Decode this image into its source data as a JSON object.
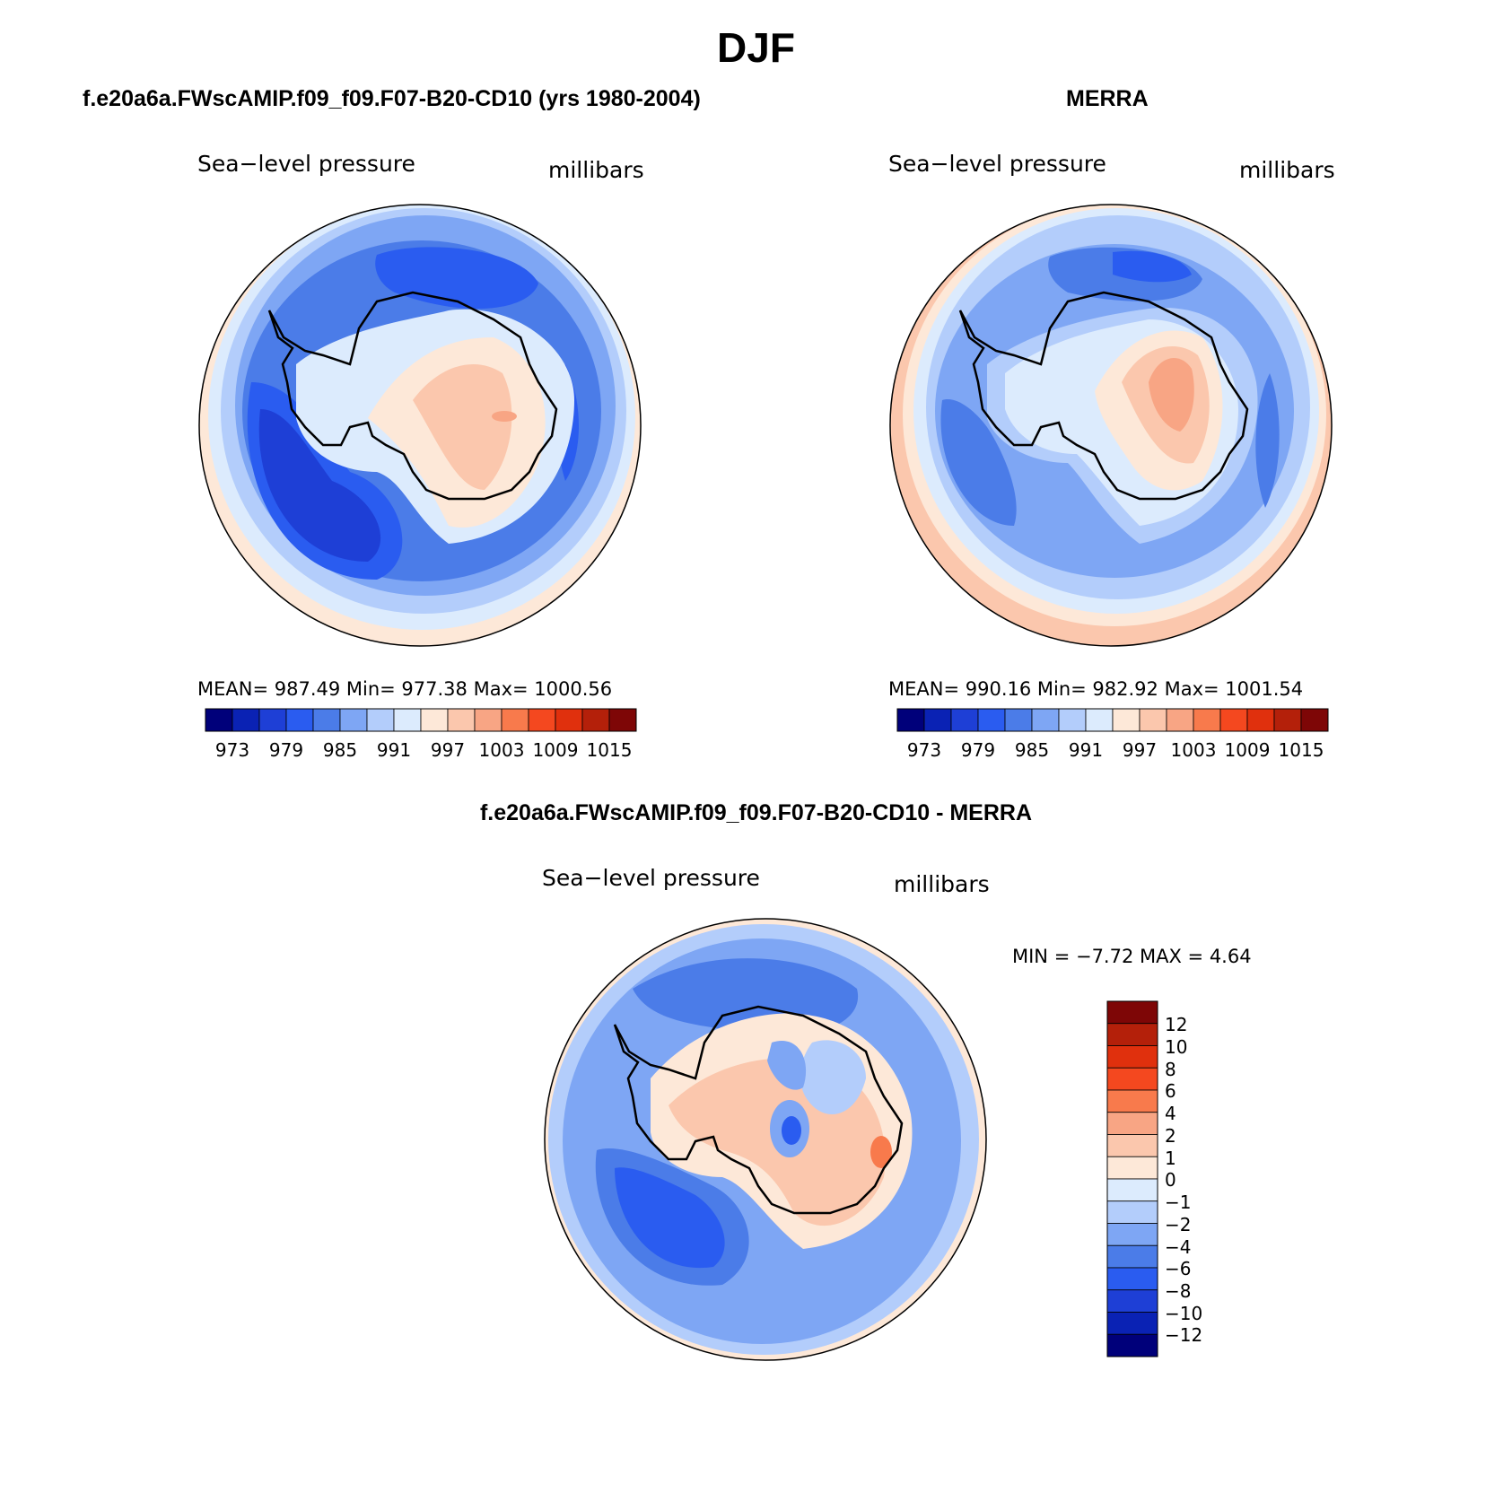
{
  "figure": {
    "season": "DJF",
    "panels": [
      {
        "case_title": "f.e20a6a.FWscAMIP.f09_f09.F07-B20-CD10 (yrs 1980-2004)",
        "variable": "Sea−level pressure",
        "units": "millibars",
        "stats": "MEAN= 987.49   Min= 977.38   Max= 1000.56",
        "colorbar_labels": [
          "973",
          "979",
          "985",
          "991",
          "997",
          "1003",
          "1009",
          "1015"
        ]
      },
      {
        "case_title": "MERRA",
        "variable": "Sea−level pressure",
        "units": "millibars",
        "stats": "MEAN= 990.16   Min= 982.92   Max= 1001.54",
        "colorbar_labels": [
          "973",
          "979",
          "985",
          "991",
          "997",
          "1003",
          "1009",
          "1015"
        ]
      },
      {
        "case_title": "f.e20a6a.FWscAMIP.f09_f09.F07-B20-CD10 - MERRA",
        "variable": "Sea−level pressure",
        "units": "millibars",
        "stats": "MIN =   −7.72 MAX =    4.64",
        "colorbar_labels": [
          "12",
          "10",
          "8",
          "6",
          "4",
          "2",
          "1",
          "0",
          "−1",
          "−2",
          "−4",
          "−6",
          "−8",
          "−10",
          "−12"
        ]
      }
    ]
  },
  "colorbar_colors": {
    "absolute": [
      "#00007a",
      "#0a22b4",
      "#1e3fd6",
      "#2a5cf0",
      "#4b7ce8",
      "#7ea6f4",
      "#b3cdfb",
      "#dcebfd",
      "#fde8d8",
      "#fbc7ad",
      "#f8a584",
      "#f87a4c",
      "#f4481f",
      "#e0300d",
      "#b4200a",
      "#7e0606"
    ],
    "difference": [
      "#7e0606",
      "#b4200a",
      "#e0300d",
      "#f4481f",
      "#f87a4c",
      "#f8a584",
      "#fbc7ad",
      "#fde8d8",
      "#dcebfd",
      "#b3cdfb",
      "#7ea6f4",
      "#4b7ce8",
      "#2a5cf0",
      "#1e3fd6",
      "#0a22b4",
      "#00007a"
    ]
  }
}
